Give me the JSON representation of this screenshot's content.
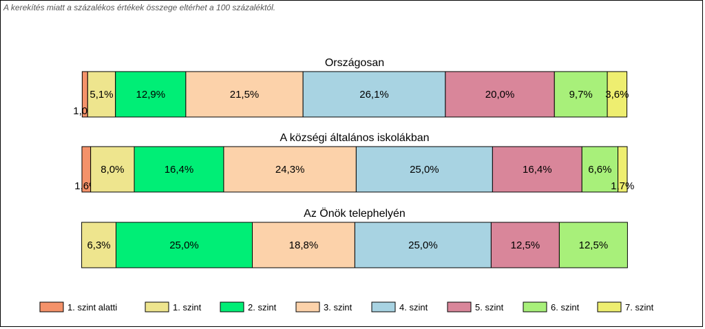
{
  "chart_data": {
    "type": "bar",
    "subtype": "stacked-horizontal-100",
    "note": "A kerekítés miatt a százalékos értékek összege eltérhet a 100 százaléktól.",
    "categories": [
      "1. szint alatti",
      "1. szint",
      "2. szint",
      "3. szint",
      "4. szint",
      "5. szint",
      "6. szint",
      "7. szint"
    ],
    "colors": [
      "#F4926A",
      "#EEE58E",
      "#00EE76",
      "#FCD2AA",
      "#A8D3E2",
      "#D9869A",
      "#A8F07A",
      "#EEEE70"
    ],
    "bars": [
      {
        "title": "Országosan",
        "values": [
          1.0,
          5.1,
          12.9,
          21.5,
          26.1,
          20.0,
          9.7,
          3.6
        ],
        "labels": [
          "1,0%",
          "5,1%",
          "12,9%",
          "21,5%",
          "26,1%",
          "20,0%",
          "9,7%",
          "3,6%"
        ]
      },
      {
        "title": "A községi általános iskolákban",
        "values": [
          1.6,
          8.0,
          16.4,
          24.3,
          25.0,
          16.4,
          6.6,
          1.7
        ],
        "labels": [
          "1,6%",
          "8,0%",
          "16,4%",
          "24,3%",
          "25,0%",
          "16,4%",
          "6,6%",
          "1,7%"
        ]
      },
      {
        "title": "Az Önök telephelyén",
        "values": [
          0,
          6.3,
          25.0,
          18.8,
          25.0,
          12.5,
          12.5,
          0
        ],
        "labels": [
          "",
          "6,3%",
          "25,0%",
          "18,8%",
          "25,0%",
          "12,5%",
          "12,5%",
          ""
        ]
      }
    ],
    "legend_position": "bottom"
  }
}
